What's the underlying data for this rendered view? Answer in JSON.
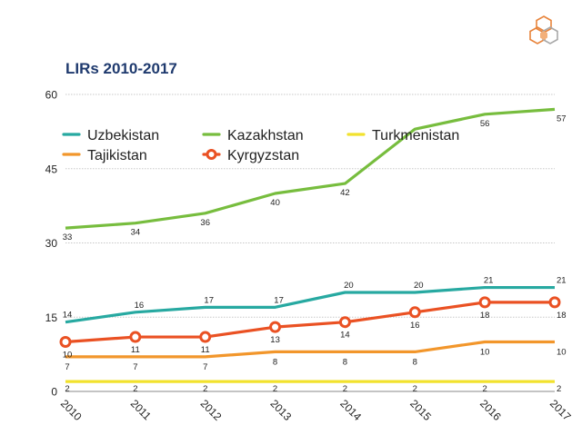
{
  "logo": {
    "icon": "hexagon-cluster-logo-icon",
    "colors": [
      "#e8833a",
      "#f3b07a",
      "#a8a8a8"
    ]
  },
  "chart_data": {
    "type": "line",
    "title": "LIRs 2010-2017",
    "x": [
      "2010",
      "2011",
      "2012",
      "2013",
      "2014",
      "2015",
      "2016",
      "2017"
    ],
    "ylim": [
      0,
      60
    ],
    "yticks": [
      "0",
      "15",
      "30",
      "45",
      "60"
    ],
    "grid": "horizontal",
    "legend": "top",
    "series": [
      {
        "name": "Uzbekistan",
        "color": "#27a9a1",
        "marker": "none",
        "values": [
          14,
          16,
          17,
          17,
          20,
          20,
          21,
          21
        ]
      },
      {
        "name": "Kazakhstan",
        "color": "#77bd3e",
        "marker": "none",
        "values": [
          33,
          34,
          36,
          40,
          42,
          53,
          56,
          57
        ]
      },
      {
        "name": "Turkmenistan",
        "color": "#f2e22e",
        "marker": "none",
        "values": [
          2,
          2,
          2,
          2,
          2,
          2,
          2,
          2
        ]
      },
      {
        "name": "Tajikistan",
        "color": "#f2962b",
        "marker": "none",
        "values": [
          7,
          7,
          7,
          8,
          8,
          8,
          10,
          10
        ]
      },
      {
        "name": "Kyrgyzstan",
        "color": "#ea5123",
        "marker": "circle",
        "values": [
          10,
          11,
          11,
          13,
          14,
          16,
          18,
          18
        ]
      }
    ],
    "data_labels": {
      "Uzbekistan": [
        "14",
        "16",
        "17",
        "17",
        "20",
        "20",
        "21",
        "21"
      ],
      "Kazakhstan": [
        "33",
        "34",
        "36",
        "40",
        "42",
        "",
        "56",
        "57"
      ],
      "Turkmenistan": [
        "2",
        "2",
        "2",
        "2",
        "2",
        "2",
        "2",
        "2"
      ],
      "Tajikistan": [
        "7",
        "7",
        "7",
        "8",
        "8",
        "8",
        "10",
        "10"
      ],
      "Kyrgyzstan": [
        "10",
        "11",
        "11",
        "13",
        "14",
        "16",
        "18",
        "18"
      ]
    }
  }
}
